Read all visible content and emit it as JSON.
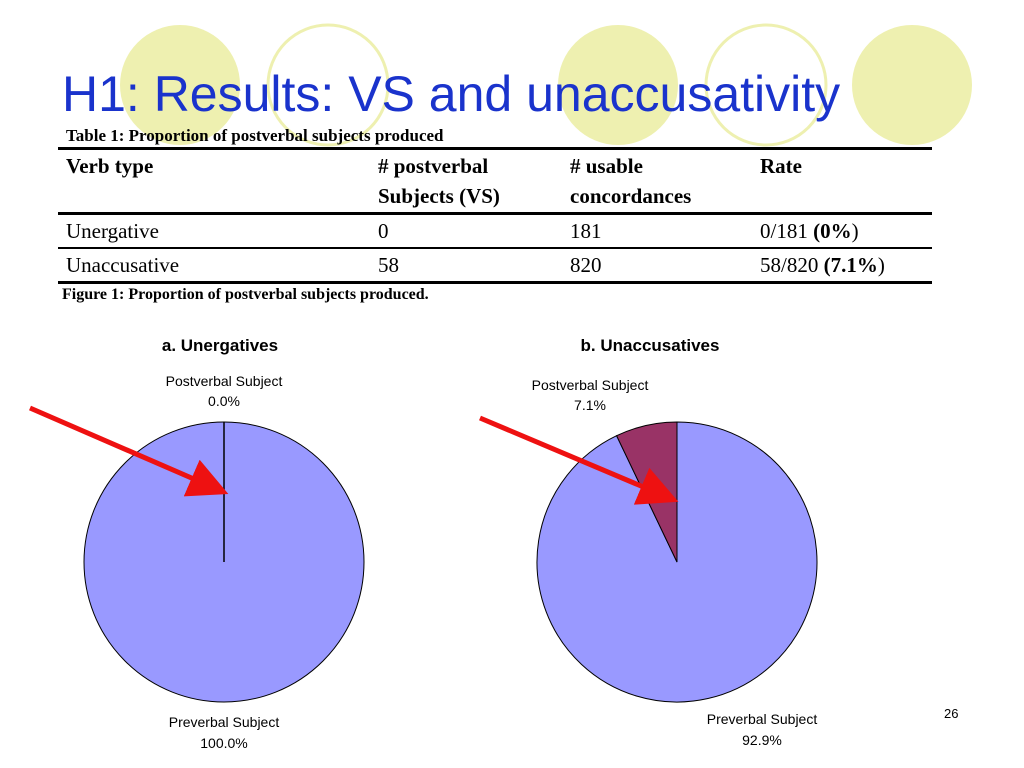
{
  "slide": {
    "title": "H1: Results: VS and unaccusativity",
    "number": "26",
    "decor_color": "#eef0b0"
  },
  "table": {
    "caption": "Table 1: Proportion of postverbal subjects produced",
    "headers": [
      [
        "Verb type"
      ],
      [
        "# postverbal",
        "Subjects (VS)"
      ],
      [
        "# usable",
        "concordances"
      ],
      [
        "Rate"
      ]
    ],
    "rows": [
      {
        "verb_type": "Unergative",
        "postverbal": "0",
        "usable": "181",
        "rate_plain": "0/181 ",
        "rate_bold": "(0%",
        "rate_close": ")"
      },
      {
        "verb_type": "Unaccusative",
        "postverbal": "58",
        "usable": "820",
        "rate_plain": "58/820 ",
        "rate_bold": "(7.1%",
        "rate_close": ")"
      }
    ]
  },
  "figure_caption": "Figure 1: Proportion of postverbal subjects produced.",
  "chart_data": [
    {
      "type": "pie",
      "title": "a. Unergatives",
      "slices": [
        {
          "label": "Postverbal Subject",
          "value": 0.0,
          "value_label": "0.0%",
          "color": "#9999ff"
        },
        {
          "label": "Preverbal Subject",
          "value": 100.0,
          "value_label": "100.0%",
          "color": "#9999ff"
        }
      ],
      "annotation": {
        "type": "arrow",
        "color": "#ee1111",
        "points_to": "Postverbal Subject"
      }
    },
    {
      "type": "pie",
      "title": "b. Unaccusatives",
      "slices": [
        {
          "label": "Postverbal Subject",
          "value": 7.1,
          "value_label": "7.1%",
          "color": "#993366"
        },
        {
          "label": "Preverbal Subject",
          "value": 92.9,
          "value_label": "92.9%",
          "color": "#9999ff"
        }
      ],
      "annotation": {
        "type": "arrow",
        "color": "#ee1111",
        "points_to": "Postverbal Subject"
      }
    }
  ]
}
